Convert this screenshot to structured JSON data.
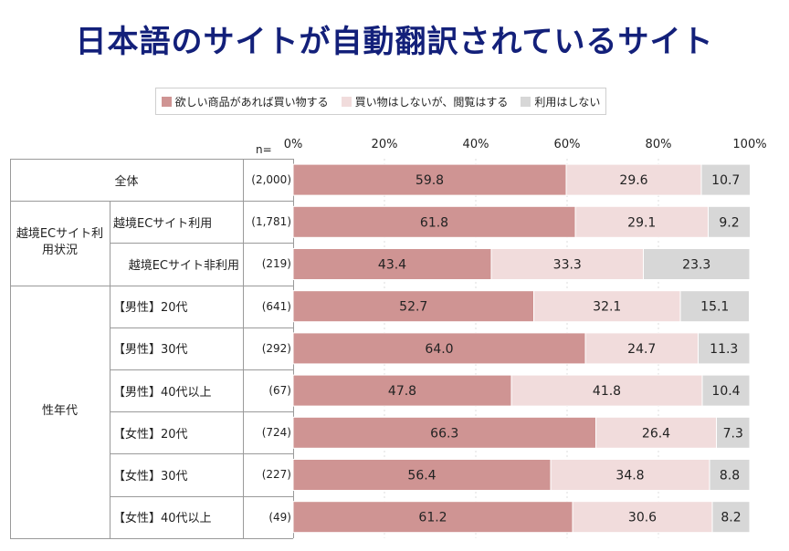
{
  "title": "日本語のサイトが自動翻訳されているサイト",
  "legend": [
    {
      "label": "欲しい商品があれば買い物する",
      "color": "#cf9493"
    },
    {
      "label": "買い物はしないが、閲覧はする",
      "color": "#f1dcdc"
    },
    {
      "label": "利用はしない",
      "color": "#d7d7d7"
    }
  ],
  "n_prefix": "n=",
  "groups": [
    {
      "label": "",
      "rows": [
        0
      ]
    },
    {
      "label": "越境ECサイト利\n用状況",
      "rows": [
        1,
        2
      ]
    },
    {
      "label": "性年代",
      "rows": [
        3,
        4,
        5,
        6,
        7,
        8
      ]
    }
  ],
  "chart_data": {
    "type": "bar",
    "orientation": "horizontal",
    "stacked": true,
    "title": "日本語のサイトが自動翻訳されているサイト",
    "xlim": [
      0,
      100
    ],
    "x_ticks": [
      "0%",
      "20%",
      "40%",
      "60%",
      "80%",
      "100%"
    ],
    "categories": [
      "全体",
      "越境ECサイト利用",
      "越境ECサイト非利用",
      "【男性】20代",
      "【男性】30代",
      "【男性】40代以上",
      "【女性】20代",
      "【女性】30代",
      "【女性】40代以上"
    ],
    "n": [
      "(2,000)",
      "(1,781)",
      "(219)",
      "(641)",
      "(292)",
      "(67)",
      "(724)",
      "(227)",
      "(49)"
    ],
    "series": [
      {
        "name": "欲しい商品があれば買い物する",
        "color": "#cf9493",
        "values": [
          "59.8",
          "61.8",
          "43.4",
          "52.7",
          "64.0",
          "47.8",
          "66.3",
          "56.4",
          "61.2"
        ]
      },
      {
        "name": "買い物はしないが、閲覧はする",
        "color": "#f1dcdc",
        "values": [
          "29.6",
          "29.1",
          "33.3",
          "32.1",
          "24.7",
          "41.8",
          "26.4",
          "34.8",
          "30.6"
        ]
      },
      {
        "name": "利用はしない",
        "color": "#d7d7d7",
        "values": [
          "10.7",
          "9.2",
          "23.3",
          "15.1",
          "11.3",
          "10.4",
          "7.3",
          "8.8",
          "8.2"
        ]
      }
    ],
    "legend_position": "top"
  }
}
